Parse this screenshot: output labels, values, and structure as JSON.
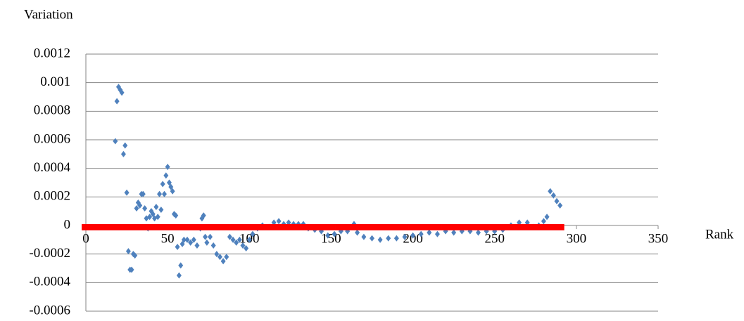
{
  "chart_data": {
    "type": "scatter",
    "y_label": "Variation",
    "x_label": "Rank",
    "xlim": [
      0,
      350
    ],
    "xticks": [
      0,
      50,
      100,
      150,
      200,
      250,
      300,
      350
    ],
    "ylim": [
      -0.0006,
      0.0012
    ],
    "yticks": [
      -0.0006,
      -0.0004,
      -0.0002,
      0,
      0.0002,
      0.0004,
      0.0006,
      0.0008,
      0.001,
      0.0012
    ],
    "grid": true,
    "series": [
      {
        "color": "#4f81bd",
        "marker": "diamond",
        "x": [
          18,
          19,
          20,
          21,
          22,
          23,
          24,
          25,
          26,
          27,
          28,
          29,
          30,
          31,
          32,
          33,
          34,
          35,
          36,
          37,
          38,
          39,
          40,
          41,
          42,
          43,
          44,
          45,
          46,
          47,
          48,
          49,
          50,
          51,
          52,
          53,
          54,
          55,
          56,
          57,
          58,
          59,
          60,
          62,
          64,
          66,
          68,
          70,
          71,
          72,
          73,
          74,
          76,
          78,
          80,
          82,
          84,
          86,
          88,
          90,
          92,
          94,
          96,
          98,
          100,
          102,
          105,
          108,
          112,
          115,
          118,
          121,
          124,
          127,
          130,
          133,
          136,
          140,
          144,
          148,
          152,
          156,
          160,
          164,
          166,
          170,
          175,
          180,
          185,
          190,
          195,
          200,
          205,
          210,
          215,
          220,
          225,
          230,
          235,
          240,
          245,
          250,
          255,
          260,
          265,
          270,
          274,
          277,
          280,
          282,
          284,
          286,
          288,
          290
        ],
        "values": [
          0.00059,
          0.00087,
          0.00097,
          0.00095,
          0.00093,
          0.0005,
          0.00056,
          0.00023,
          -0.00018,
          -0.00031,
          -0.00031,
          -0.0002,
          -0.00021,
          0.00012,
          0.00016,
          0.00014,
          0.00022,
          0.00022,
          0.00012,
          5e-05,
          -2e-05,
          6e-05,
          0.0001,
          8e-05,
          5e-05,
          0.00013,
          6e-05,
          0.00022,
          0.00011,
          0.00029,
          0.00022,
          0.00035,
          0.00041,
          0.0003,
          0.00027,
          0.00024,
          8e-05,
          7e-05,
          -0.00015,
          -0.00035,
          -0.00028,
          -0.00013,
          -0.0001,
          -0.0001,
          -0.00012,
          -0.0001,
          -0.00014,
          -2e-05,
          5e-05,
          7e-05,
          -8e-05,
          -0.00012,
          -8e-05,
          -0.00014,
          -0.0002,
          -0.00022,
          -0.00025,
          -0.00022,
          -8e-05,
          -0.0001,
          -0.00012,
          -0.0001,
          -0.00014,
          -0.00016,
          -0.0001,
          -6e-05,
          -2e-05,
          0,
          -1e-05,
          2e-05,
          3e-05,
          1e-05,
          2e-05,
          1e-05,
          1e-05,
          1e-05,
          -2e-05,
          -3e-05,
          -4e-05,
          -7e-05,
          -6e-05,
          -4e-05,
          -4e-05,
          1e-05,
          -5e-05,
          -8e-05,
          -9e-05,
          -0.0001,
          -9e-05,
          -9e-05,
          -8e-05,
          -7e-05,
          -6e-05,
          -5e-05,
          -6e-05,
          -4e-05,
          -5e-05,
          -4e-05,
          -4e-05,
          -5e-05,
          -4e-05,
          -4e-05,
          -3e-05,
          0,
          2e-05,
          2e-05,
          -1e-05,
          0,
          3e-05,
          6e-05,
          0.00024,
          0.00021,
          0.00017,
          0.00014
        ]
      },
      {
        "color": "#ff0000",
        "marker": "bar",
        "x": [
          0,
          5,
          10,
          15,
          20,
          25,
          30,
          35,
          40,
          45,
          50,
          55,
          60,
          65,
          70,
          75,
          80,
          85,
          90,
          95,
          100,
          105,
          110,
          115,
          120,
          125,
          130,
          135,
          140,
          145,
          150,
          155,
          160,
          165,
          170,
          175,
          180,
          185,
          190,
          195,
          200,
          205,
          210,
          215,
          220,
          225,
          230,
          235,
          240,
          245,
          250,
          255,
          260,
          265,
          270,
          275,
          280,
          285,
          290
        ],
        "values": [
          0,
          0,
          0,
          0,
          0,
          0,
          0,
          0,
          0,
          0,
          0,
          0,
          0,
          0,
          0,
          0,
          0,
          0,
          0,
          0,
          0,
          0,
          0,
          0,
          0,
          0,
          0,
          0,
          0,
          0,
          0,
          0,
          0,
          0,
          0,
          0,
          0,
          0,
          0,
          0,
          0,
          0,
          0,
          0,
          0,
          0,
          0,
          0,
          0,
          0,
          0,
          0,
          0,
          0,
          0,
          0,
          0,
          0,
          0
        ]
      }
    ]
  }
}
